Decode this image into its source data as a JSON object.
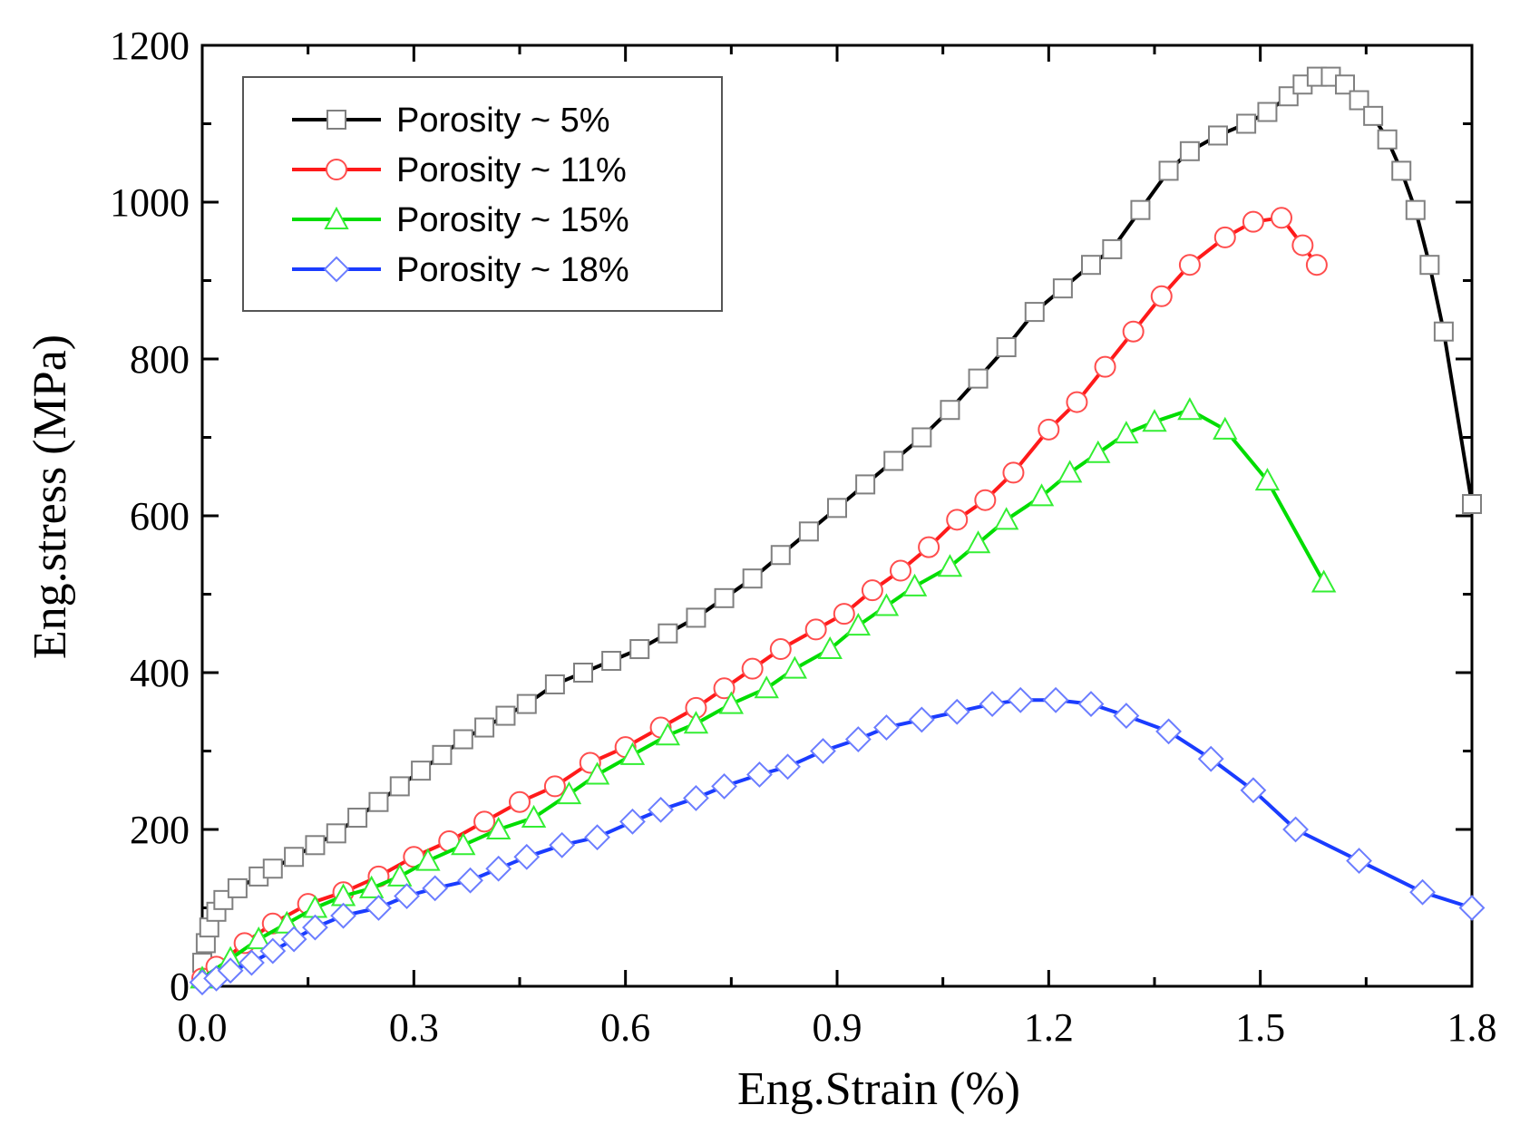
{
  "chart_data": {
    "type": "line",
    "title": "",
    "xlabel": "Eng.Strain (%)",
    "ylabel": "Eng.stress (MPa)",
    "xlim": [
      0.0,
      1.8
    ],
    "ylim": [
      0,
      1200
    ],
    "xticks": [
      "0.0",
      "0.3",
      "0.6",
      "0.9",
      "1.2",
      "1.5",
      "1.8"
    ],
    "yticks": [
      "0",
      "200",
      "400",
      "600",
      "800",
      "1000",
      "1200"
    ],
    "legend_position": "top-left",
    "grid": false,
    "series": [
      {
        "name": "Porosity ~ 5%",
        "color": "#000000",
        "marker": "square",
        "marker_color": "#808080",
        "x": [
          0.0,
          0.005,
          0.01,
          0.02,
          0.03,
          0.05,
          0.08,
          0.1,
          0.13,
          0.16,
          0.19,
          0.22,
          0.25,
          0.28,
          0.31,
          0.34,
          0.37,
          0.4,
          0.43,
          0.46,
          0.5,
          0.54,
          0.58,
          0.62,
          0.66,
          0.7,
          0.74,
          0.78,
          0.82,
          0.86,
          0.9,
          0.94,
          0.98,
          1.02,
          1.06,
          1.1,
          1.14,
          1.18,
          1.22,
          1.26,
          1.29,
          1.33,
          1.37,
          1.4,
          1.44,
          1.48,
          1.51,
          1.54,
          1.56,
          1.58,
          1.6,
          1.62,
          1.64,
          1.66,
          1.68,
          1.7,
          1.72,
          1.74,
          1.76,
          1.8
        ],
        "y": [
          30,
          55,
          75,
          95,
          110,
          125,
          140,
          150,
          165,
          180,
          195,
          215,
          235,
          255,
          275,
          295,
          315,
          330,
          345,
          360,
          385,
          400,
          415,
          430,
          450,
          470,
          495,
          520,
          550,
          580,
          610,
          640,
          670,
          700,
          735,
          775,
          815,
          860,
          890,
          920,
          940,
          990,
          1040,
          1065,
          1085,
          1100,
          1115,
          1135,
          1150,
          1160,
          1160,
          1150,
          1130,
          1110,
          1080,
          1040,
          990,
          920,
          835,
          615
        ]
      },
      {
        "name": "Porosity ~ 11%",
        "color": "#ff1a1a",
        "marker": "circle",
        "marker_color": "#ff4d4d",
        "x": [
          0.0,
          0.02,
          0.06,
          0.1,
          0.15,
          0.2,
          0.25,
          0.3,
          0.35,
          0.4,
          0.45,
          0.5,
          0.55,
          0.6,
          0.65,
          0.7,
          0.74,
          0.78,
          0.82,
          0.87,
          0.91,
          0.95,
          0.99,
          1.03,
          1.07,
          1.11,
          1.15,
          1.2,
          1.24,
          1.28,
          1.32,
          1.36,
          1.4,
          1.45,
          1.49,
          1.53,
          1.56,
          1.58
        ],
        "y": [
          10,
          25,
          55,
          80,
          105,
          120,
          140,
          165,
          185,
          210,
          235,
          255,
          285,
          305,
          330,
          355,
          380,
          405,
          430,
          455,
          475,
          505,
          530,
          560,
          595,
          620,
          655,
          710,
          745,
          790,
          835,
          880,
          920,
          955,
          975,
          980,
          945,
          920
        ]
      },
      {
        "name": "Porosity ~ 15%",
        "color": "#00dd00",
        "marker": "triangle",
        "marker_color": "#33ee33",
        "x": [
          0.0,
          0.04,
          0.08,
          0.12,
          0.16,
          0.2,
          0.24,
          0.28,
          0.32,
          0.37,
          0.42,
          0.47,
          0.52,
          0.56,
          0.61,
          0.66,
          0.7,
          0.75,
          0.8,
          0.84,
          0.89,
          0.93,
          0.97,
          1.01,
          1.06,
          1.1,
          1.14,
          1.19,
          1.23,
          1.27,
          1.31,
          1.35,
          1.4,
          1.45,
          1.51,
          1.59
        ],
        "y": [
          10,
          35,
          60,
          80,
          100,
          115,
          125,
          140,
          160,
          180,
          200,
          215,
          245,
          270,
          295,
          320,
          335,
          360,
          380,
          405,
          430,
          460,
          485,
          510,
          535,
          565,
          595,
          625,
          655,
          680,
          705,
          720,
          735,
          710,
          645,
          515
        ]
      },
      {
        "name": "Porosity ~ 18%",
        "color": "#1a3cff",
        "marker": "diamond",
        "marker_color": "#6b7dff",
        "x": [
          0.0,
          0.02,
          0.04,
          0.07,
          0.1,
          0.13,
          0.16,
          0.2,
          0.25,
          0.29,
          0.33,
          0.38,
          0.42,
          0.46,
          0.51,
          0.56,
          0.61,
          0.65,
          0.7,
          0.74,
          0.79,
          0.83,
          0.88,
          0.93,
          0.97,
          1.02,
          1.07,
          1.12,
          1.16,
          1.21,
          1.26,
          1.31,
          1.37,
          1.43,
          1.49,
          1.55,
          1.64,
          1.73,
          1.8
        ],
        "y": [
          5,
          10,
          20,
          30,
          45,
          60,
          75,
          90,
          100,
          115,
          125,
          135,
          150,
          165,
          180,
          190,
          210,
          225,
          240,
          255,
          270,
          280,
          300,
          315,
          330,
          340,
          350,
          360,
          365,
          365,
          360,
          345,
          325,
          290,
          250,
          200,
          160,
          120,
          100
        ]
      }
    ]
  }
}
